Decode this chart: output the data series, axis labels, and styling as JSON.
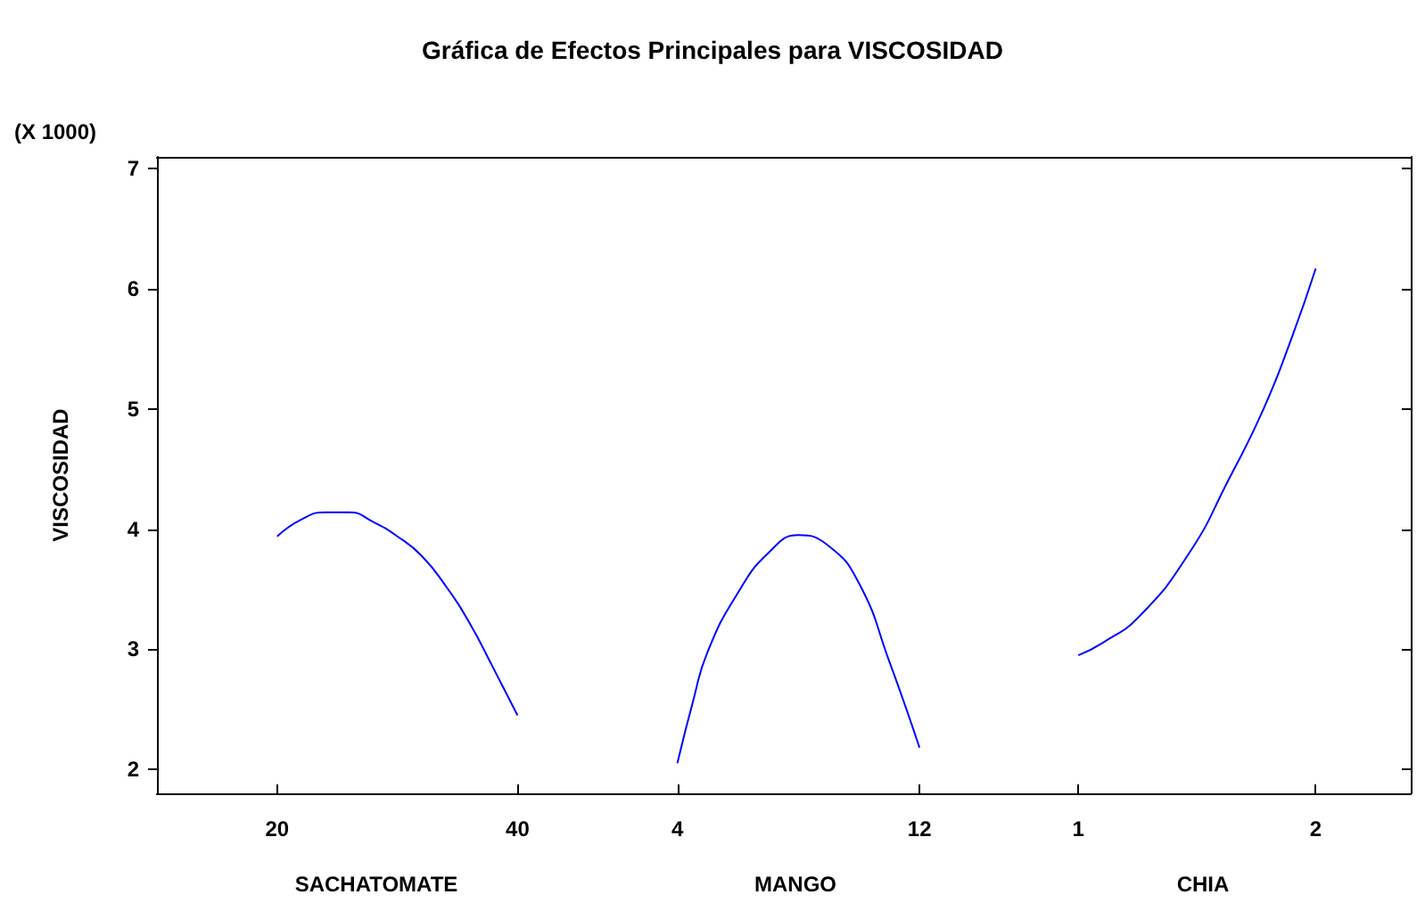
{
  "chart_data": [
    {
      "type": "line",
      "title": "Gráfica de Efectos Principales para VISCOSIDAD",
      "ylabel": "VISCOSIDAD",
      "xlabel": "SACHATOMATE",
      "annotations": [
        "(X 1000)"
      ],
      "color": "#0000ff",
      "marker": "none",
      "grid": false,
      "x": [
        20,
        22,
        24,
        26,
        28,
        30,
        32,
        34,
        36,
        38,
        40
      ],
      "values": [
        3.94,
        4.08,
        4.14,
        4.14,
        4.06,
        3.94,
        3.78,
        3.53,
        3.22,
        2.84,
        2.45
      ],
      "xlim": [
        10,
        46.5
      ],
      "xticks": [
        20,
        40
      ],
      "ylim": [
        1.8,
        7.1
      ],
      "yticks": [
        2,
        3,
        4,
        5,
        6,
        7
      ]
    },
    {
      "type": "line",
      "xlabel": "MANGO",
      "color": "#0000ff",
      "marker": "none",
      "grid": false,
      "tick_labels": "x",
      "x": [
        4,
        4.5,
        5,
        6,
        7,
        8,
        9,
        10,
        11,
        12
      ],
      "values": [
        2.05,
        2.55,
        2.98,
        3.47,
        3.8,
        3.95,
        3.86,
        3.55,
        2.9,
        2.18
      ],
      "xlim": [
        1.3,
        14.5
      ],
      "xticks": [
        4,
        12
      ],
      "ylim": [
        1.8,
        7.1
      ],
      "yticks": [
        2,
        3,
        4,
        5,
        6,
        7
      ]
    },
    {
      "type": "line",
      "xlabel": "CHIA",
      "color": "#0000ff",
      "marker": "none",
      "grid": false,
      "tick_labels": "x",
      "x": [
        1,
        1.1,
        1.26,
        1.47,
        1.63,
        1.78,
        1.9,
        2
      ],
      "values": [
        2.95,
        3.05,
        3.28,
        3.81,
        4.4,
        5.0,
        5.6,
        6.17
      ],
      "xlim": [
        0.65,
        2.4
      ],
      "xticks": [
        1,
        2
      ],
      "ylim": [
        1.8,
        7.1
      ],
      "yticks": [
        2,
        3,
        4,
        5,
        6,
        7
      ]
    }
  ]
}
